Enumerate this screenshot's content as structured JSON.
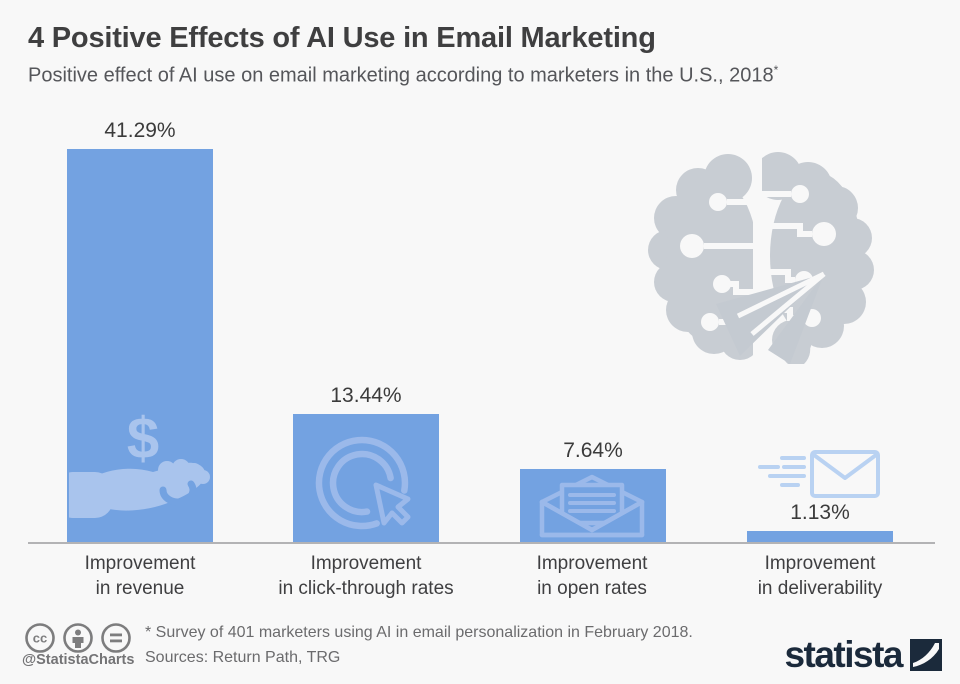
{
  "header": {
    "title": "4 Positive Effects of AI Use in Email Marketing",
    "subtitle": "Positive effect of AI use on email marketing according to marketers in the U.S., 2018",
    "note_marker": "*"
  },
  "chart_data": {
    "type": "bar",
    "title": "4 Positive Effects of AI Use in Email Marketing",
    "categories": [
      "Improvement in revenue",
      "Improvement in click-through rates",
      "Improvement in open rates",
      "Improvement in deliverability"
    ],
    "categories_lines": [
      [
        "Improvement",
        "in revenue"
      ],
      [
        "Improvement",
        "in click-through rates"
      ],
      [
        "Improvement",
        "in open rates"
      ],
      [
        "Improvement",
        "in deliverability"
      ]
    ],
    "values": [
      41.29,
      13.44,
      7.64,
      1.13
    ],
    "value_labels": [
      "41.29%",
      "13.44%",
      "7.64%",
      "1.13%"
    ],
    "unit": "%",
    "ylim": [
      0,
      45
    ],
    "grid": false,
    "legend": "none",
    "bar_color": "#73a2e1",
    "icons": [
      "hand-receiving-dollar-icon",
      "click-cursor-circle-icon",
      "open-envelope-letter-icon",
      "flying-envelope-icon"
    ],
    "decoration": "ai-circuit-brain-with-paper-plane"
  },
  "footer": {
    "license_icons": [
      "cc",
      "attribution",
      "no-derivatives"
    ],
    "handle": "@StatistaCharts",
    "footnote": "* Survey of 401 marketers using AI in email personalization in February 2018.",
    "sources": "Sources: Return Path, TRG",
    "brand": "statista"
  },
  "colors": {
    "background": "#f8f8f8",
    "bar": "#73a2e1",
    "icon_fill": "#a9c4ed",
    "icon_stroke": "#9bb9ea",
    "decoration_gray": "#c8cdd3",
    "brand_navy": "#1b2a3b"
  }
}
